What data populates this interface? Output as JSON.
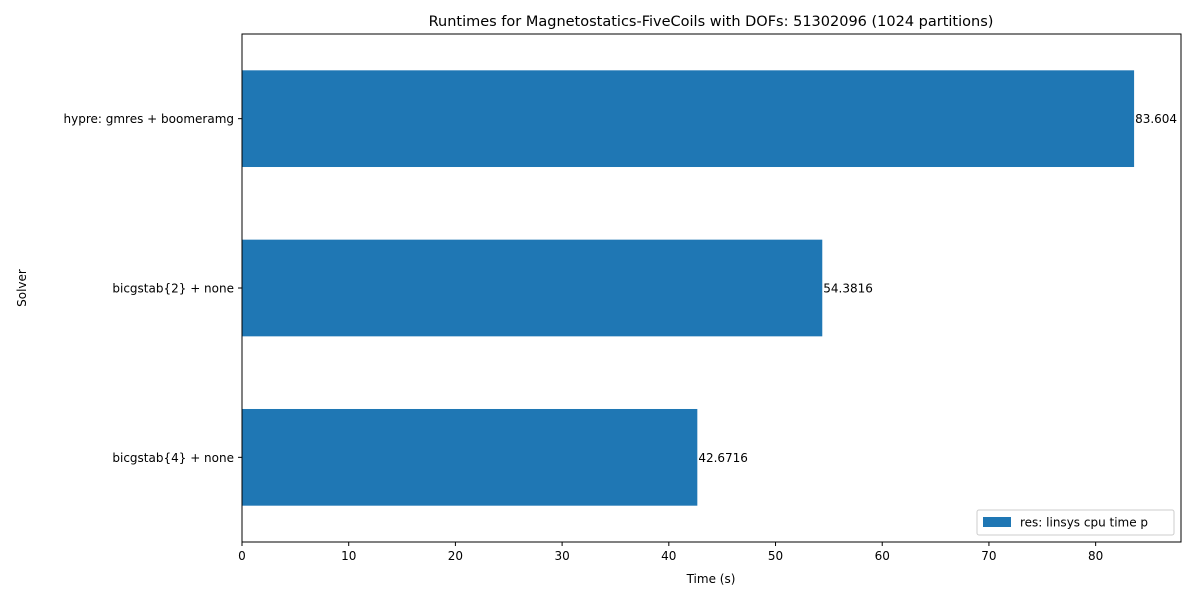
{
  "chart_data": {
    "type": "bar",
    "orientation": "horizontal",
    "title": "Runtimes for Magnetostatics-FiveCoils with DOFs: 51302096 (1024 partitions)",
    "xlabel": "Time (s)",
    "ylabel": "Solver",
    "categories": [
      "bicgstab{4} + none",
      "bicgstab{2} + none",
      "hypre: gmres + boomeramg"
    ],
    "series": [
      {
        "name": "res: linsys cpu time p",
        "values": [
          42.6716,
          54.3816,
          83.604
        ],
        "labels": [
          "42.6716",
          "54.3816",
          "83.604"
        ],
        "color": "#1f77b4"
      }
    ],
    "xlim": [
      0,
      88.0
    ],
    "xticks": [
      0,
      10,
      20,
      30,
      40,
      50,
      60,
      70,
      80
    ],
    "grid": false,
    "legend_position": "lower-right"
  }
}
